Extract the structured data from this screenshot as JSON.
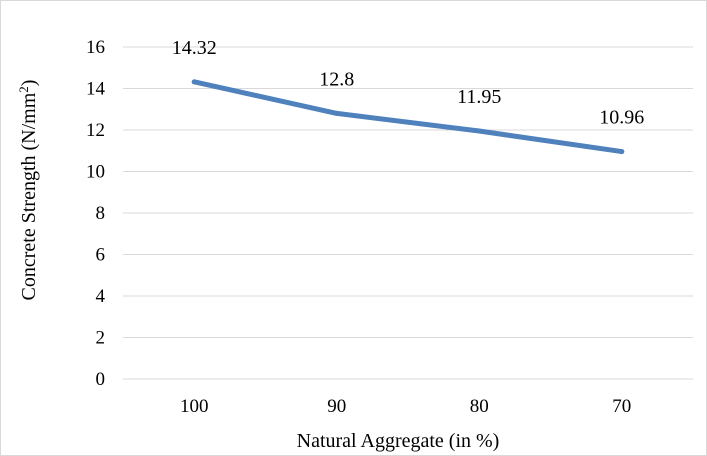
{
  "chart_data": {
    "type": "line",
    "title": "",
    "xlabel": "Natural Aggregate (in %)",
    "ylabel_main": "Concrete Strength (N/mm",
    "ylabel_sup": "2",
    "ylabel_close": ")",
    "ylim": [
      0,
      16
    ],
    "ytick_step": 2,
    "yticks": [
      "0",
      "2",
      "4",
      "6",
      "8",
      "10",
      "12",
      "14",
      "16"
    ],
    "categories": [
      "100",
      "90",
      "80",
      "70"
    ],
    "series": [
      {
        "values": [
          14.32,
          12.8,
          11.95,
          10.96
        ],
        "labels": [
          "14.32",
          "12.8",
          "11.95",
          "10.96"
        ],
        "color": "#4f81bd"
      }
    ],
    "grid": true,
    "legend": "none",
    "gridline_color": "#d9d9d9"
  }
}
